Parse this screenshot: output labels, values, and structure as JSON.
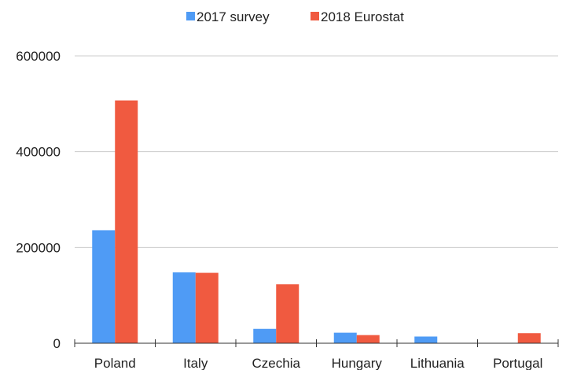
{
  "chart_data": {
    "type": "bar",
    "categories": [
      "Poland",
      "Italy",
      "Czechia",
      "Hungary",
      "Lithuania",
      "Portugal"
    ],
    "series": [
      {
        "name": "2017 survey",
        "color": "#4f9bf5",
        "values": [
          236000,
          148000,
          30000,
          22000,
          14000,
          0
        ]
      },
      {
        "name": "2018 Eurostat",
        "color": "#f05a40",
        "values": [
          507000,
          147000,
          123000,
          17000,
          0,
          21000
        ]
      }
    ],
    "ylim": [
      0,
      600000
    ],
    "yticks": [
      0,
      200000,
      400000,
      600000
    ],
    "grid": true,
    "legend": "top-center",
    "title": "",
    "xlabel": "",
    "ylabel": ""
  }
}
